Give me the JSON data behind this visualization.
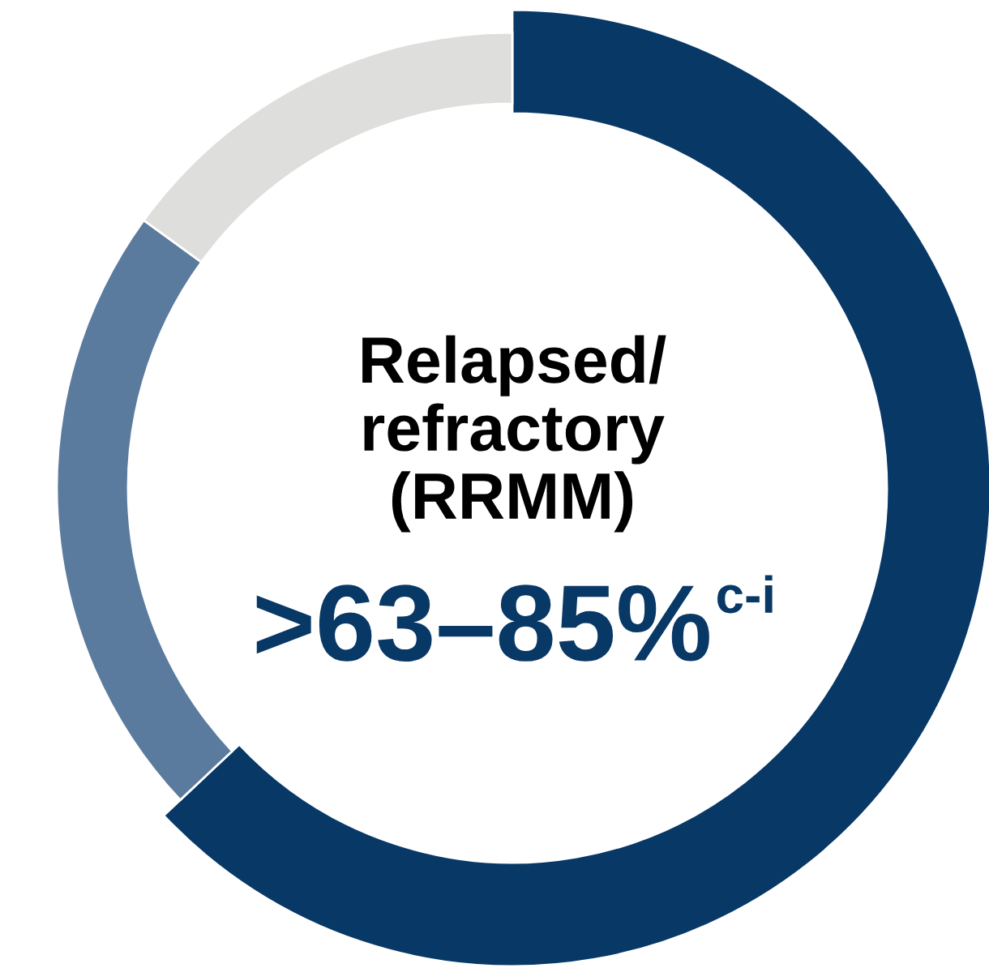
{
  "chart_data": {
    "type": "donut",
    "title": "Relapsed/\nrefractory\n(RRMM)",
    "annotations": [
      ">63–85%$^{c-i}$"
    ],
    "categories": [
      null,
      null,
      null
    ],
    "values": [
      63,
      22,
      15
    ],
    "colors": [
      "#083866",
      "#5b7b9e",
      "#dededc"
    ]
  }
}
